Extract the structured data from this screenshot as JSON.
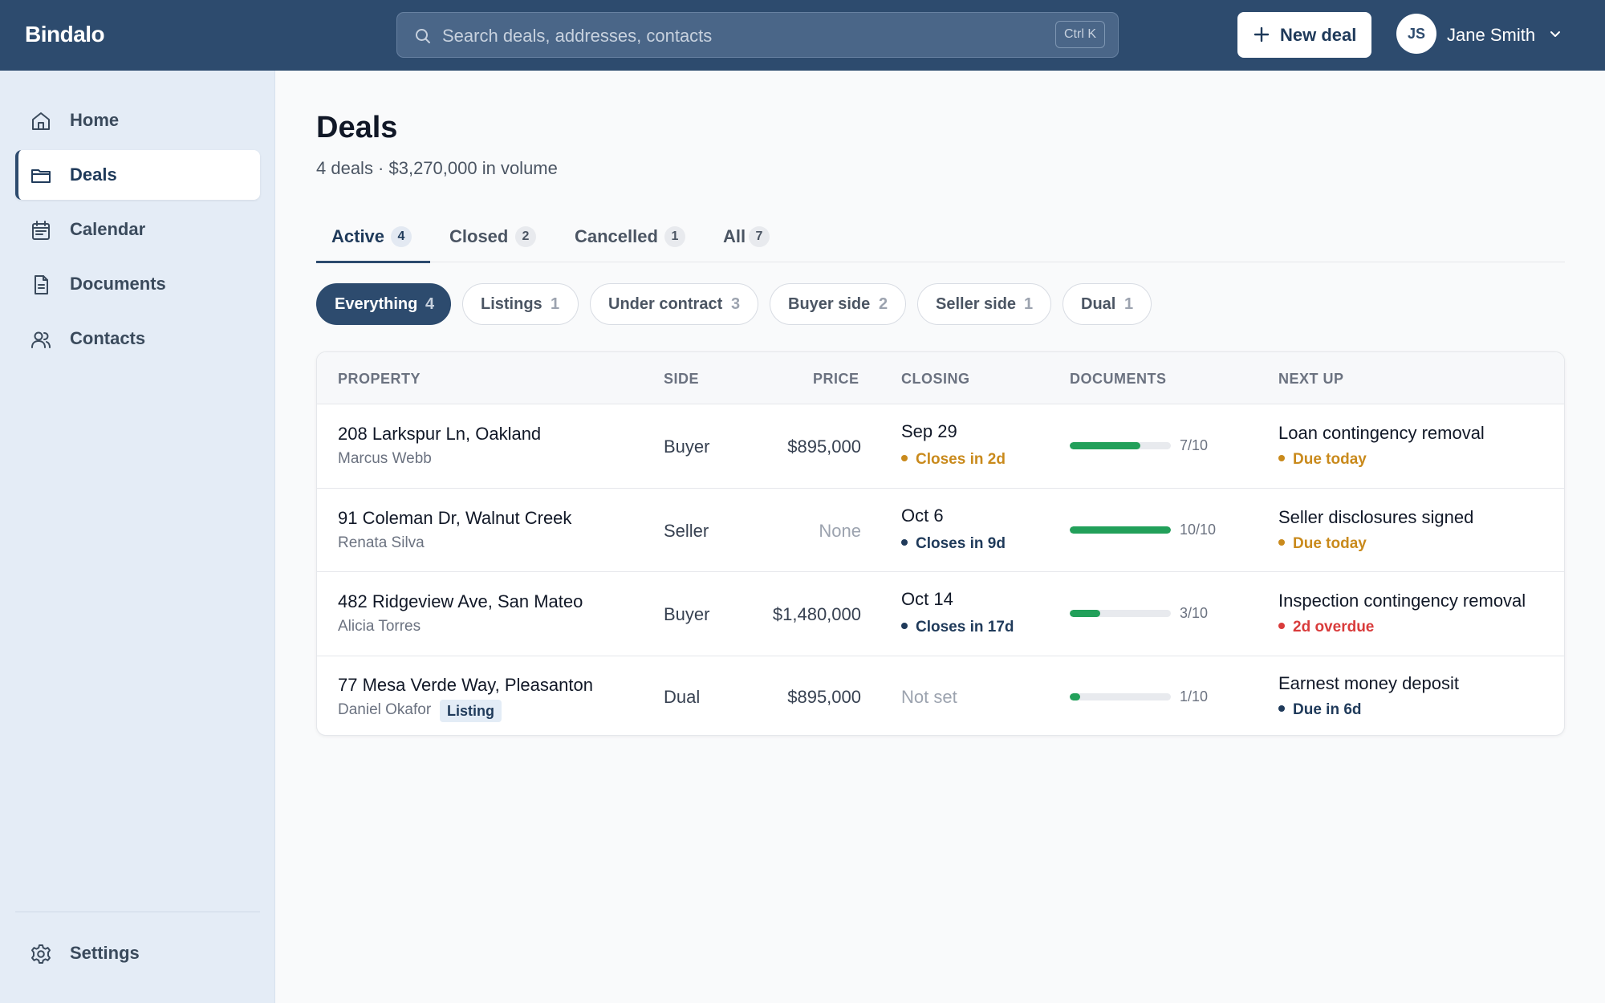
{
  "app": {
    "name": "Bindalo"
  },
  "search": {
    "placeholder": "Search deals, addresses, contacts",
    "shortcut": "Ctrl K"
  },
  "header": {
    "new_deal_label": "New deal"
  },
  "user": {
    "initials": "JS",
    "name": "Jane Smith"
  },
  "sidebar": {
    "items": [
      {
        "label": "Home",
        "icon": "home-icon"
      },
      {
        "label": "Deals",
        "icon": "folder-icon",
        "active": true
      },
      {
        "label": "Calendar",
        "icon": "calendar-icon"
      },
      {
        "label": "Documents",
        "icon": "document-icon"
      },
      {
        "label": "Contacts",
        "icon": "contacts-icon"
      }
    ],
    "settings_label": "Settings"
  },
  "page": {
    "title": "Deals",
    "subtitle": "4 deals · $3,270,000 in volume"
  },
  "tabs": [
    {
      "label": "Active",
      "count": "4",
      "active": true
    },
    {
      "label": "Closed",
      "count": "2"
    },
    {
      "label": "Cancelled",
      "count": "1"
    },
    {
      "label": "All",
      "count": "7"
    }
  ],
  "filters": [
    {
      "label": "Everything",
      "count": "4",
      "active": true
    },
    {
      "label": "Listings",
      "count": "1"
    },
    {
      "label": "Under contract",
      "count": "3"
    },
    {
      "label": "Buyer side",
      "count": "2"
    },
    {
      "label": "Seller side",
      "count": "1"
    },
    {
      "label": "Dual",
      "count": "1"
    }
  ],
  "table": {
    "columns": [
      "PROPERTY",
      "SIDE",
      "PRICE",
      "CLOSING",
      "DOCUMENTS",
      "NEXT UP"
    ],
    "rows": [
      {
        "address": "208 Larkspur Ln, Oakland",
        "contact": "Marcus Webb",
        "side": "Buyer",
        "price": "$895,000",
        "closing_date": "Sep 29",
        "closing_status": "Closes in 2d",
        "docs": "7/10",
        "docs_fraction": 0.7,
        "next_task": "Loan contingency removal",
        "next_status": "Due today"
      },
      {
        "address": "91 Coleman Dr, Walnut Creek",
        "contact": "Renata Silva",
        "side": "Seller",
        "price": "None",
        "closing_date": "Oct 6",
        "closing_status": "Closes in 9d",
        "docs": "10/10",
        "docs_fraction": 1.0,
        "next_task": "Seller disclosures signed",
        "next_status": "Due today"
      },
      {
        "address": "482 Ridgeview Ave, San Mateo",
        "contact": "Alicia Torres",
        "side": "Buyer",
        "price": "$1,480,000",
        "closing_date": "Oct 14",
        "closing_status": "Closes in 17d",
        "docs": "3/10",
        "docs_fraction": 0.3,
        "next_task": "Inspection contingency removal",
        "next_status": "2d overdue"
      },
      {
        "address": "77 Mesa Verde Way, Pleasanton",
        "contact": "Daniel Okafor",
        "badge": "Listing",
        "side": "Dual",
        "price": "$895,000",
        "closing_date": "Not set",
        "docs": "1/10",
        "docs_fraction": 0.1,
        "next_task": "Earnest money deposit",
        "next_status": "Due in 6d"
      }
    ]
  },
  "colors": {
    "brand": "#2d4b6e",
    "warning": "#c98a1c",
    "info": "#1f3a5a",
    "danger": "#d93b3b",
    "success": "#22a05a"
  }
}
